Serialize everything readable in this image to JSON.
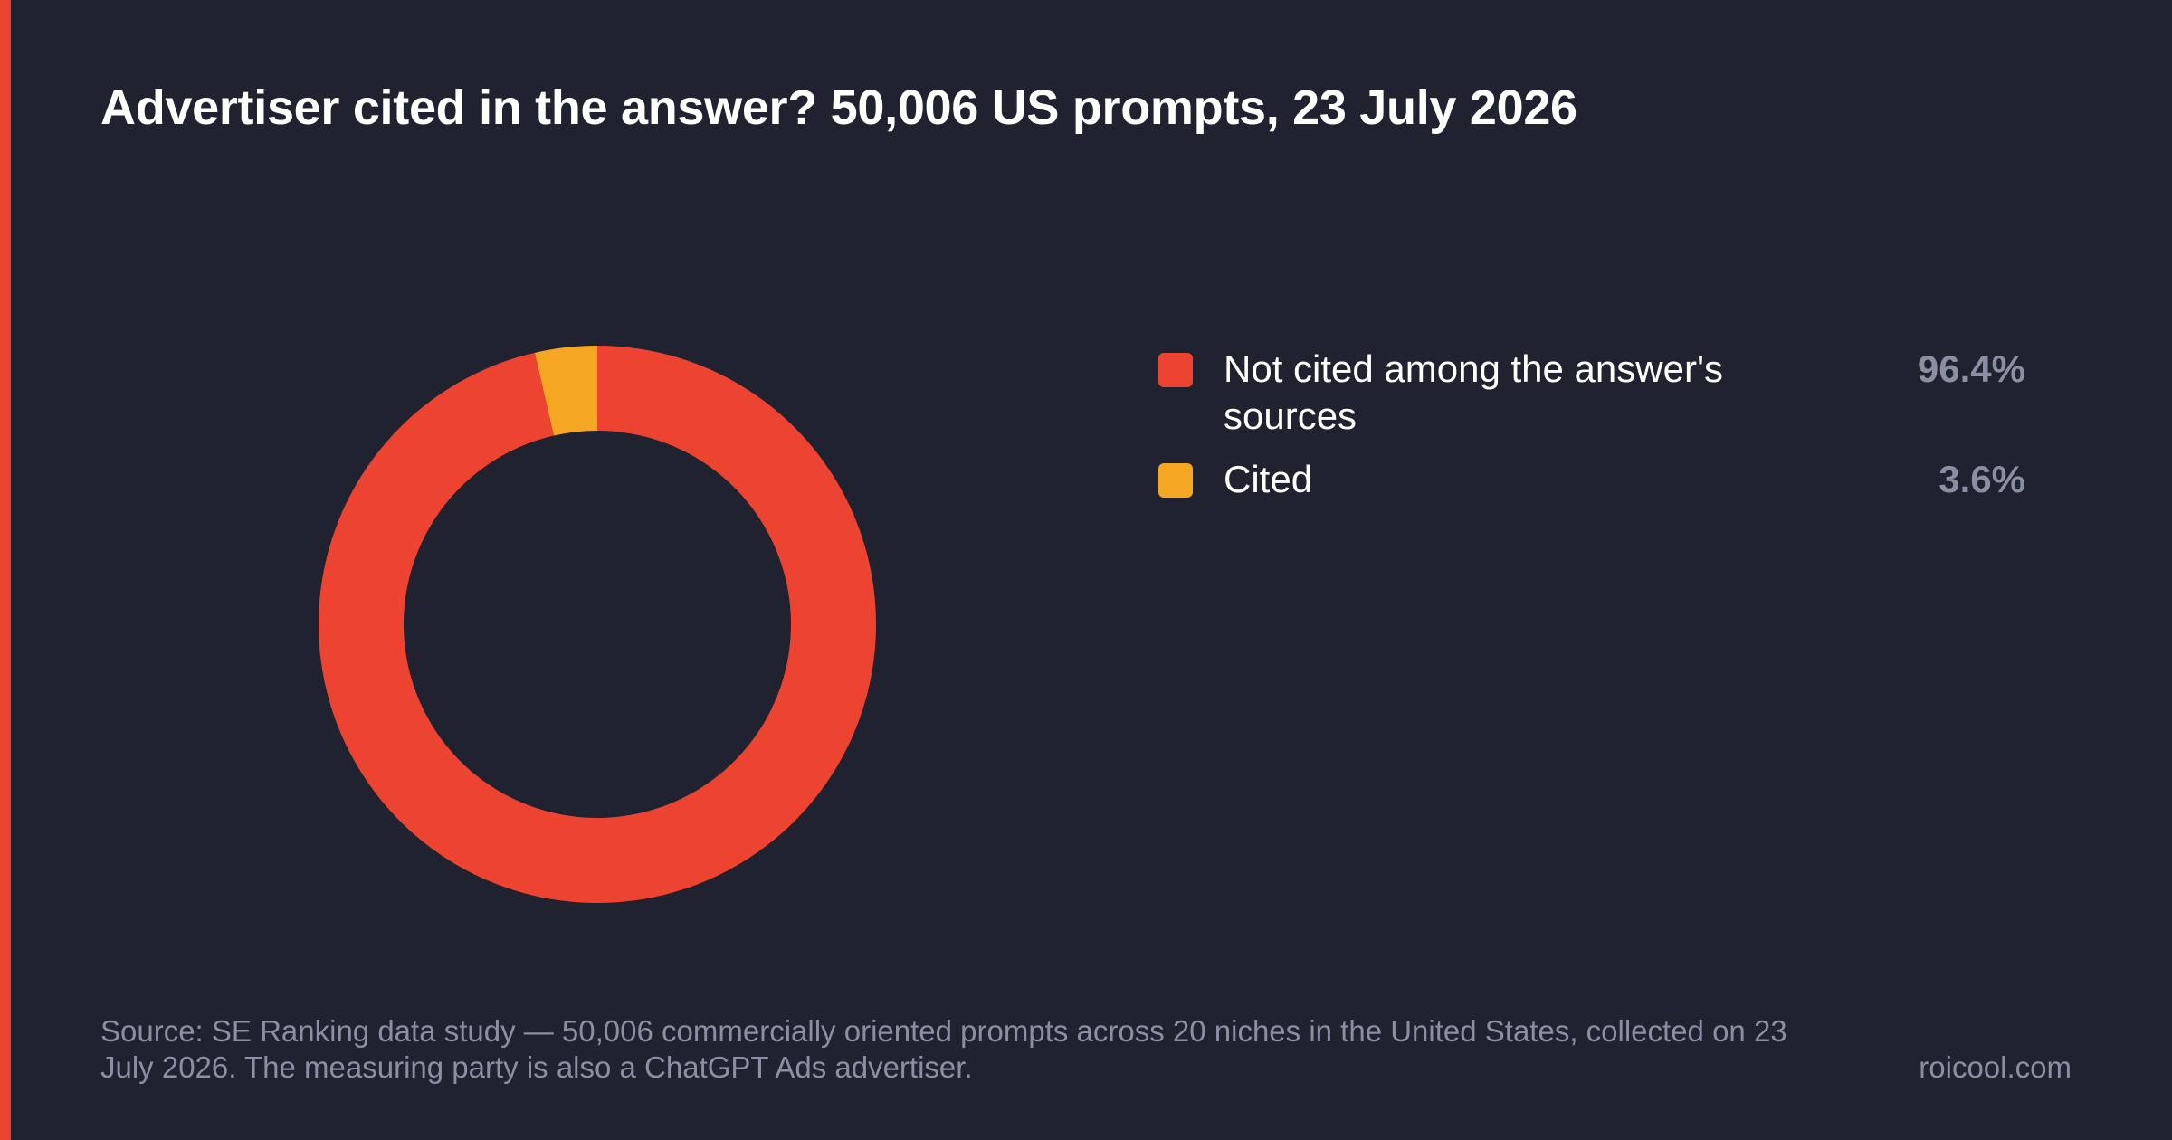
{
  "title": "Advertiser cited in the answer? 50,006 US prompts, 23 July 2026",
  "colors": {
    "background": "#20222f",
    "accent_bar": "#ec4431",
    "not_cited": "#ec4431",
    "cited": "#f5a623",
    "muted_text": "#8a8fa3"
  },
  "chart_data": {
    "type": "pie",
    "variant": "donut",
    "legend_placement": "right",
    "slices": [
      {
        "label": "Not cited among the answer's sources",
        "value": 96.4,
        "display": "96.4%",
        "color": "#ec4431"
      },
      {
        "label": "Cited",
        "value": 3.6,
        "display": "3.6%",
        "color": "#f5a623"
      }
    ]
  },
  "footer": {
    "source": "Source: SE Ranking data study — 50,006 commercially oriented prompts across 20 niches in the United States, collected on 23 July 2026. The measuring party is also a ChatGPT Ads advertiser.",
    "brand": "roicool.com"
  }
}
